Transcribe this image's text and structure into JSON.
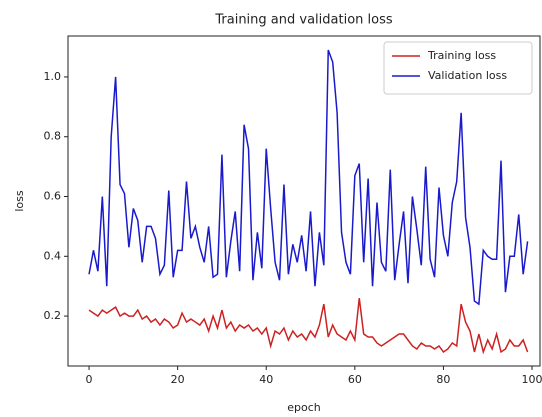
{
  "chart_data": {
    "type": "line",
    "title": "Training and validation loss",
    "x_label": "epoch",
    "y_label": "loss",
    "x": [
      0,
      1,
      2,
      3,
      4,
      5,
      6,
      7,
      8,
      9,
      10,
      11,
      12,
      13,
      14,
      15,
      16,
      17,
      18,
      19,
      20,
      21,
      22,
      23,
      24,
      25,
      26,
      27,
      28,
      29,
      30,
      31,
      32,
      33,
      34,
      35,
      36,
      37,
      38,
      39,
      40,
      41,
      42,
      43,
      44,
      45,
      46,
      47,
      48,
      49,
      50,
      51,
      52,
      53,
      54,
      55,
      56,
      57,
      58,
      59,
      60,
      61,
      62,
      63,
      64,
      65,
      66,
      67,
      68,
      69,
      70,
      71,
      72,
      73,
      74,
      75,
      76,
      77,
      78,
      79,
      80,
      81,
      82,
      83,
      84,
      85,
      86,
      87,
      88,
      89,
      90,
      91,
      92,
      93,
      94,
      95,
      96,
      97,
      98,
      99
    ],
    "series": [
      {
        "name": "Training loss",
        "color": "#cc2222",
        "values": [
          0.22,
          0.21,
          0.2,
          0.22,
          0.21,
          0.22,
          0.23,
          0.2,
          0.21,
          0.2,
          0.2,
          0.22,
          0.19,
          0.2,
          0.18,
          0.19,
          0.17,
          0.19,
          0.18,
          0.16,
          0.17,
          0.21,
          0.18,
          0.19,
          0.18,
          0.17,
          0.19,
          0.15,
          0.2,
          0.16,
          0.22,
          0.16,
          0.18,
          0.15,
          0.17,
          0.16,
          0.17,
          0.15,
          0.16,
          0.14,
          0.16,
          0.1,
          0.15,
          0.14,
          0.16,
          0.12,
          0.15,
          0.13,
          0.14,
          0.12,
          0.15,
          0.13,
          0.17,
          0.24,
          0.13,
          0.17,
          0.14,
          0.13,
          0.12,
          0.15,
          0.12,
          0.26,
          0.14,
          0.13,
          0.13,
          0.11,
          0.1,
          0.11,
          0.12,
          0.13,
          0.14,
          0.14,
          0.12,
          0.1,
          0.09,
          0.11,
          0.1,
          0.1,
          0.09,
          0.1,
          0.08,
          0.09,
          0.11,
          0.1,
          0.24,
          0.18,
          0.15,
          0.08,
          0.14,
          0.08,
          0.12,
          0.09,
          0.14,
          0.08,
          0.09,
          0.12,
          0.1,
          0.1,
          0.12,
          0.08
        ]
      },
      {
        "name": "Validation loss",
        "color": "#1a1acc",
        "values": [
          0.34,
          0.42,
          0.35,
          0.6,
          0.3,
          0.8,
          1.0,
          0.64,
          0.61,
          0.43,
          0.56,
          0.52,
          0.38,
          0.5,
          0.5,
          0.46,
          0.34,
          0.37,
          0.62,
          0.33,
          0.42,
          0.42,
          0.65,
          0.46,
          0.5,
          0.43,
          0.38,
          0.5,
          0.33,
          0.34,
          0.74,
          0.33,
          0.45,
          0.55,
          0.35,
          0.84,
          0.76,
          0.32,
          0.48,
          0.36,
          0.76,
          0.56,
          0.38,
          0.32,
          0.64,
          0.34,
          0.44,
          0.38,
          0.47,
          0.35,
          0.55,
          0.3,
          0.48,
          0.37,
          1.09,
          1.05,
          0.88,
          0.48,
          0.38,
          0.34,
          0.67,
          0.71,
          0.38,
          0.66,
          0.3,
          0.58,
          0.38,
          0.35,
          0.69,
          0.32,
          0.44,
          0.55,
          0.31,
          0.6,
          0.49,
          0.37,
          0.7,
          0.39,
          0.33,
          0.63,
          0.47,
          0.4,
          0.58,
          0.65,
          0.88,
          0.53,
          0.43,
          0.25,
          0.24,
          0.42,
          0.4,
          0.39,
          0.39,
          0.72,
          0.28,
          0.4,
          0.4,
          0.54,
          0.34,
          0.45
        ]
      }
    ],
    "xlim": [
      -4.75,
      101.8
    ],
    "ylim": [
      0.033,
      1.137
    ],
    "xticks": [
      0,
      20,
      40,
      60,
      80,
      100
    ],
    "yticks": [
      0.2,
      0.4,
      0.6,
      0.8,
      {
        "value": 1,
        "label": "1.0"
      }
    ],
    "grid": false,
    "legend": "upper right"
  }
}
